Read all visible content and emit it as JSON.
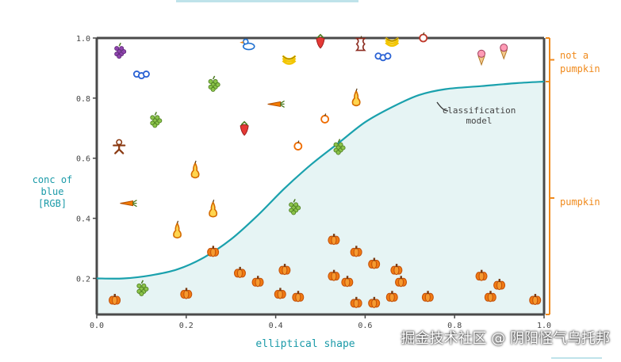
{
  "chart_data": {
    "type": "scatter",
    "xlabel": "elliptical shape",
    "ylabel_lines": [
      "conc of",
      "blue",
      "[RGB]"
    ],
    "xlim": [
      0,
      1.0
    ],
    "ylim": [
      0.08,
      1.0
    ],
    "xticks": [
      {
        "value": 0.0,
        "label": "0.0"
      },
      {
        "value": 0.2,
        "label": "0.2"
      },
      {
        "value": 0.4,
        "label": "0.4"
      },
      {
        "value": 0.6,
        "label": "0.6"
      },
      {
        "value": 0.8,
        "label": "0.8"
      },
      {
        "value": 1.0,
        "label": "1.0"
      }
    ],
    "yticks": [
      {
        "value": 0.2,
        "label": "0.2"
      },
      {
        "value": 0.4,
        "label": "0.4"
      },
      {
        "value": 0.6,
        "label": "0.6"
      },
      {
        "value": 0.8,
        "label": "0.8"
      },
      {
        "value": 1.0,
        "label": "1.0"
      }
    ],
    "curve_label": [
      "classification",
      "model"
    ],
    "curve": [
      [
        0.0,
        0.2
      ],
      [
        0.06,
        0.2
      ],
      [
        0.12,
        0.21
      ],
      [
        0.18,
        0.23
      ],
      [
        0.24,
        0.27
      ],
      [
        0.3,
        0.33
      ],
      [
        0.36,
        0.41
      ],
      [
        0.42,
        0.5
      ],
      [
        0.48,
        0.58
      ],
      [
        0.54,
        0.65
      ],
      [
        0.6,
        0.72
      ],
      [
        0.66,
        0.77
      ],
      [
        0.72,
        0.81
      ],
      [
        0.78,
        0.83
      ],
      [
        0.86,
        0.84
      ],
      [
        0.94,
        0.85
      ],
      [
        1.0,
        0.855
      ]
    ],
    "regions": [
      {
        "label": "not a pumpkin",
        "lines": [
          "not a",
          "pumpkin"
        ],
        "range": [
          0.855,
          1.0
        ]
      },
      {
        "label": "pumpkin",
        "lines": [
          "pumpkin"
        ],
        "range": [
          0.08,
          0.855
        ]
      }
    ],
    "points": [
      {
        "kind": "grapes-purple",
        "x": 0.05,
        "y": 0.96
      },
      {
        "kind": "blueberries",
        "x": 0.1,
        "y": 0.88
      },
      {
        "kind": "grapes-green",
        "x": 0.26,
        "y": 0.85
      },
      {
        "kind": "grapes-green",
        "x": 0.13,
        "y": 0.73
      },
      {
        "kind": "duck",
        "x": 0.34,
        "y": 0.98
      },
      {
        "kind": "strawberry",
        "x": 0.5,
        "y": 0.99
      },
      {
        "kind": "apple-core",
        "x": 0.59,
        "y": 0.98
      },
      {
        "kind": "bananas",
        "x": 0.66,
        "y": 0.99
      },
      {
        "kind": "apple",
        "x": 0.73,
        "y": 1.0
      },
      {
        "kind": "bananas",
        "x": 0.43,
        "y": 0.93
      },
      {
        "kind": "blueberries",
        "x": 0.64,
        "y": 0.94
      },
      {
        "kind": "ice-cream",
        "x": 0.86,
        "y": 0.94
      },
      {
        "kind": "ice-cream",
        "x": 0.91,
        "y": 0.96
      },
      {
        "kind": "carrot",
        "x": 0.4,
        "y": 0.78
      },
      {
        "kind": "pear",
        "x": 0.58,
        "y": 0.8
      },
      {
        "kind": "orange",
        "x": 0.51,
        "y": 0.73
      },
      {
        "kind": "strawberry",
        "x": 0.33,
        "y": 0.7
      },
      {
        "kind": "orange",
        "x": 0.45,
        "y": 0.64
      },
      {
        "kind": "gingerbread",
        "x": 0.05,
        "y": 0.64
      },
      {
        "kind": "pear",
        "x": 0.22,
        "y": 0.56
      },
      {
        "kind": "carrot",
        "x": 0.07,
        "y": 0.45
      },
      {
        "kind": "pear",
        "x": 0.26,
        "y": 0.43
      },
      {
        "kind": "pear",
        "x": 0.18,
        "y": 0.36
      },
      {
        "kind": "grapes-green",
        "x": 0.54,
        "y": 0.64
      },
      {
        "kind": "grapes-green",
        "x": 0.44,
        "y": 0.44
      },
      {
        "kind": "grapes-green",
        "x": 0.1,
        "y": 0.17
      },
      {
        "kind": "pumpkin",
        "x": 0.26,
        "y": 0.29
      },
      {
        "kind": "pumpkin",
        "x": 0.32,
        "y": 0.22
      },
      {
        "kind": "pumpkin",
        "x": 0.36,
        "y": 0.19
      },
      {
        "kind": "pumpkin",
        "x": 0.42,
        "y": 0.23
      },
      {
        "kind": "pumpkin",
        "x": 0.41,
        "y": 0.15
      },
      {
        "kind": "pumpkin",
        "x": 0.45,
        "y": 0.14
      },
      {
        "kind": "pumpkin",
        "x": 0.53,
        "y": 0.33
      },
      {
        "kind": "pumpkin",
        "x": 0.58,
        "y": 0.29
      },
      {
        "kind": "pumpkin",
        "x": 0.62,
        "y": 0.25
      },
      {
        "kind": "pumpkin",
        "x": 0.53,
        "y": 0.21
      },
      {
        "kind": "pumpkin",
        "x": 0.56,
        "y": 0.19
      },
      {
        "kind": "pumpkin",
        "x": 0.67,
        "y": 0.23
      },
      {
        "kind": "pumpkin",
        "x": 0.68,
        "y": 0.19
      },
      {
        "kind": "pumpkin",
        "x": 0.66,
        "y": 0.14
      },
      {
        "kind": "pumpkin",
        "x": 0.58,
        "y": 0.12
      },
      {
        "kind": "pumpkin",
        "x": 0.62,
        "y": 0.12
      },
      {
        "kind": "pumpkin",
        "x": 0.74,
        "y": 0.14
      },
      {
        "kind": "pumpkin",
        "x": 0.86,
        "y": 0.21
      },
      {
        "kind": "pumpkin",
        "x": 0.9,
        "y": 0.18
      },
      {
        "kind": "pumpkin",
        "x": 0.88,
        "y": 0.14
      },
      {
        "kind": "pumpkin",
        "x": 0.98,
        "y": 0.13
      },
      {
        "kind": "pumpkin",
        "x": 0.04,
        "y": 0.13
      },
      {
        "kind": "pumpkin",
        "x": 0.2,
        "y": 0.15
      }
    ]
  },
  "watermark": "掘金技术社区 @ 阴阳怪气乌托邦",
  "colors": {
    "axis": "#4a4a4a",
    "curve": "#1aa1ad",
    "fill": "#e6f4f4",
    "label_blue": "#1a9aa8",
    "orange": "#f08a1c",
    "pumpkin": "#f07a12",
    "pumpkin_outline": "#c2500a",
    "stem": "#7a3b12"
  }
}
